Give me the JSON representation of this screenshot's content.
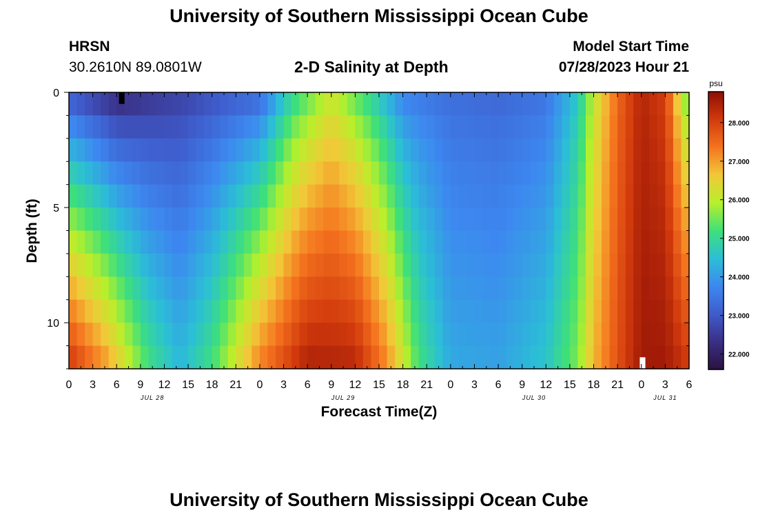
{
  "page": {
    "title_top": "University of Southern Mississippi Ocean Cube",
    "title_bottom": "University of Southern Mississippi Ocean Cube",
    "station_id": "HRSN",
    "station_coords": "30.2610N  89.0801W",
    "plot_title": "2-D Salinity at Depth",
    "model_start_label": "Model Start Time",
    "model_start_value": "07/28/2023 Hour 21"
  },
  "chart_data": {
    "type": "heatmap",
    "title": "2-D Salinity at Depth",
    "xlabel": "Forecast Time(Z)",
    "ylabel": "Depth (ft)",
    "x_tick_labels": [
      "0",
      "3",
      "6",
      "9",
      "12",
      "15",
      "18",
      "21",
      "0",
      "3",
      "6",
      "9",
      "12",
      "15",
      "18",
      "21",
      "0",
      "3",
      "6",
      "9",
      "12",
      "15",
      "18",
      "21",
      "0",
      "3",
      "6"
    ],
    "date_labels": [
      {
        "label": "JUL 28",
        "tick_index": 3.5
      },
      {
        "label": "JUL 29",
        "tick_index": 11.5
      },
      {
        "label": "JUL 30",
        "tick_index": 19.5
      },
      {
        "label": "JUL 31",
        "tick_index": 25
      }
    ],
    "y_tick_labels": [
      "0",
      "5",
      "10"
    ],
    "y_tick_values": [
      0,
      5,
      10
    ],
    "ylim": [
      0,
      12
    ],
    "forecast_hours": 78,
    "depth_levels": 12,
    "colorbar": {
      "label": "psu",
      "min": 21.6,
      "max": 28.8,
      "tick_labels": [
        "22.000",
        "23.000",
        "24.000",
        "25.000",
        "26.000",
        "27.000",
        "28.000"
      ],
      "tick_values": [
        22,
        23,
        24,
        25,
        26,
        27,
        28
      ],
      "colors": [
        "#2b1240",
        "#3a2f86",
        "#3f5ccc",
        "#3d88f0",
        "#2bbfd6",
        "#3ee07a",
        "#b8f02a",
        "#f2c838",
        "#f5741f",
        "#d23a0c",
        "#8e0e05"
      ]
    },
    "salinity_model": {
      "description": "salinity (psu) by forecast hour (0-78) and depth (0-12 ft); surface and bottom profiles interpolated, bottom values blended with depth^0.8",
      "surface_profile": [
        [
          0,
          22.8
        ],
        [
          6,
          22.0
        ],
        [
          10,
          22.3
        ],
        [
          18,
          22.8
        ],
        [
          24,
          23.1
        ],
        [
          28,
          24.8
        ],
        [
          33,
          26.0
        ],
        [
          38,
          24.8
        ],
        [
          42,
          23.6
        ],
        [
          48,
          23.3
        ],
        [
          54,
          23.2
        ],
        [
          60,
          23.4
        ],
        [
          64,
          24.6
        ],
        [
          66,
          26.0
        ],
        [
          69,
          27.5
        ],
        [
          72,
          28.4
        ],
        [
          75,
          28.0
        ],
        [
          77,
          26.0
        ],
        [
          78,
          25.2
        ]
      ],
      "bottom_profile": [
        [
          0,
          28.2
        ],
        [
          5,
          27.0
        ],
        [
          10,
          25.2
        ],
        [
          14,
          24.4
        ],
        [
          18,
          25.2
        ],
        [
          24,
          27.3
        ],
        [
          30,
          28.5
        ],
        [
          36,
          28.4
        ],
        [
          40,
          27.2
        ],
        [
          44,
          25.2
        ],
        [
          48,
          24.2
        ],
        [
          54,
          24.1
        ],
        [
          60,
          24.6
        ],
        [
          64,
          25.6
        ],
        [
          66,
          26.8
        ],
        [
          69,
          27.8
        ],
        [
          72,
          28.6
        ],
        [
          75,
          28.6
        ],
        [
          78,
          28.1
        ]
      ]
    },
    "missing_cells": [
      {
        "hour": 6.3,
        "depth_from": 0,
        "depth_to": 0.5,
        "color": "#000000"
      },
      {
        "hour": 71.8,
        "depth_from": 11.5,
        "depth_to": 12,
        "color": "#ffffff"
      }
    ]
  }
}
